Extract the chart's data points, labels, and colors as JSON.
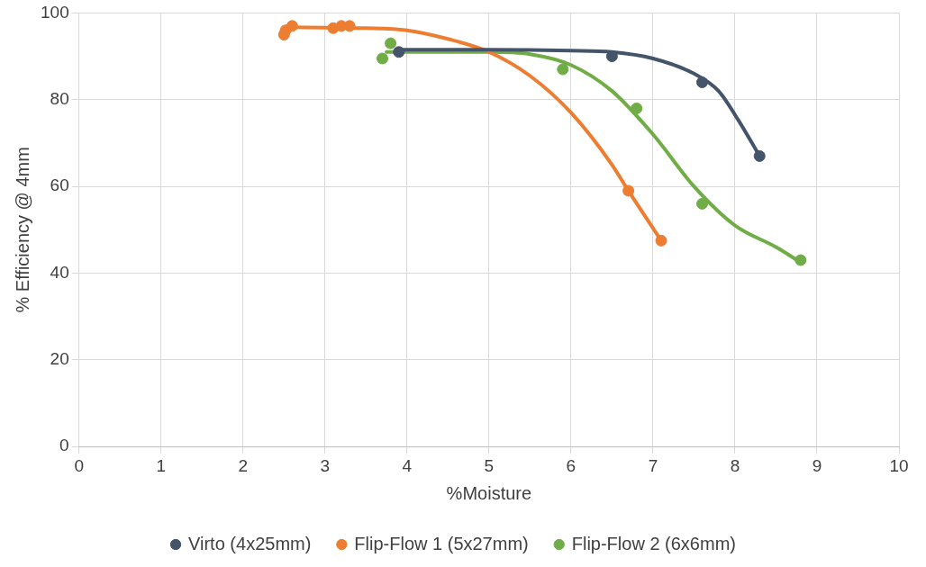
{
  "chart_data": {
    "type": "scatter",
    "xlabel": "%Moisture",
    "ylabel": "% Efficiency @ 4mm",
    "xlim": [
      0,
      10
    ],
    "xticks": [
      0,
      1,
      2,
      3,
      4,
      5,
      6,
      7,
      8,
      9,
      10
    ],
    "ylim": [
      0,
      100
    ],
    "yticks": [
      0,
      20,
      40,
      60,
      80,
      100
    ],
    "grid": true,
    "legend": "bottom",
    "marker": "circle",
    "series": [
      {
        "name": "Virto (4x25mm)",
        "color": "#44546a",
        "x": [
          3.9,
          6.5,
          7.6,
          8.3
        ],
        "values": [
          91,
          90,
          84,
          67
        ]
      },
      {
        "name": "Flip-Flow 1 (5x27mm)",
        "color": "#ed7d31",
        "x": [
          2.5,
          2.52,
          2.6,
          3.1,
          3.2,
          3.3,
          6.7,
          7.1
        ],
        "values": [
          95,
          96,
          97,
          96.5,
          97,
          97,
          59,
          47.5
        ]
      },
      {
        "name": "Flip-Flow 2 (6x6mm)",
        "color": "#70ad47",
        "x": [
          3.7,
          3.8,
          5.9,
          6.8,
          7.6,
          8.8
        ],
        "values": [
          89.5,
          93,
          87,
          78,
          56,
          43
        ]
      },
      {
        "type": "line",
        "marker": "none",
        "line_style": "solid",
        "color": "#44546a",
        "x": [
          3.9,
          5,
          6,
          6.5,
          7,
          7.5,
          7.8,
          8.05,
          8.3
        ],
        "values": [
          91.5,
          91.5,
          91.3,
          91,
          89.5,
          86,
          82,
          75,
          67
        ]
      },
      {
        "type": "line",
        "marker": "none",
        "line_style": "solid",
        "color": "#ed7d31",
        "x": [
          2.55,
          3,
          3.5,
          4,
          4.5,
          5,
          5.5,
          6,
          6.5,
          6.7,
          7.1
        ],
        "values": [
          96.7,
          96.6,
          96.5,
          96,
          94,
          91,
          85.5,
          77,
          65,
          59,
          47.5
        ]
      },
      {
        "type": "line",
        "marker": "none",
        "line_style": "solid",
        "color": "#70ad47",
        "x": [
          3.75,
          4.5,
          5,
          5.5,
          6,
          6.5,
          7,
          7.5,
          8,
          8.5,
          8.8
        ],
        "values": [
          91,
          91,
          91,
          90.5,
          88,
          82,
          72,
          60,
          51,
          46,
          42.5
        ]
      }
    ]
  }
}
